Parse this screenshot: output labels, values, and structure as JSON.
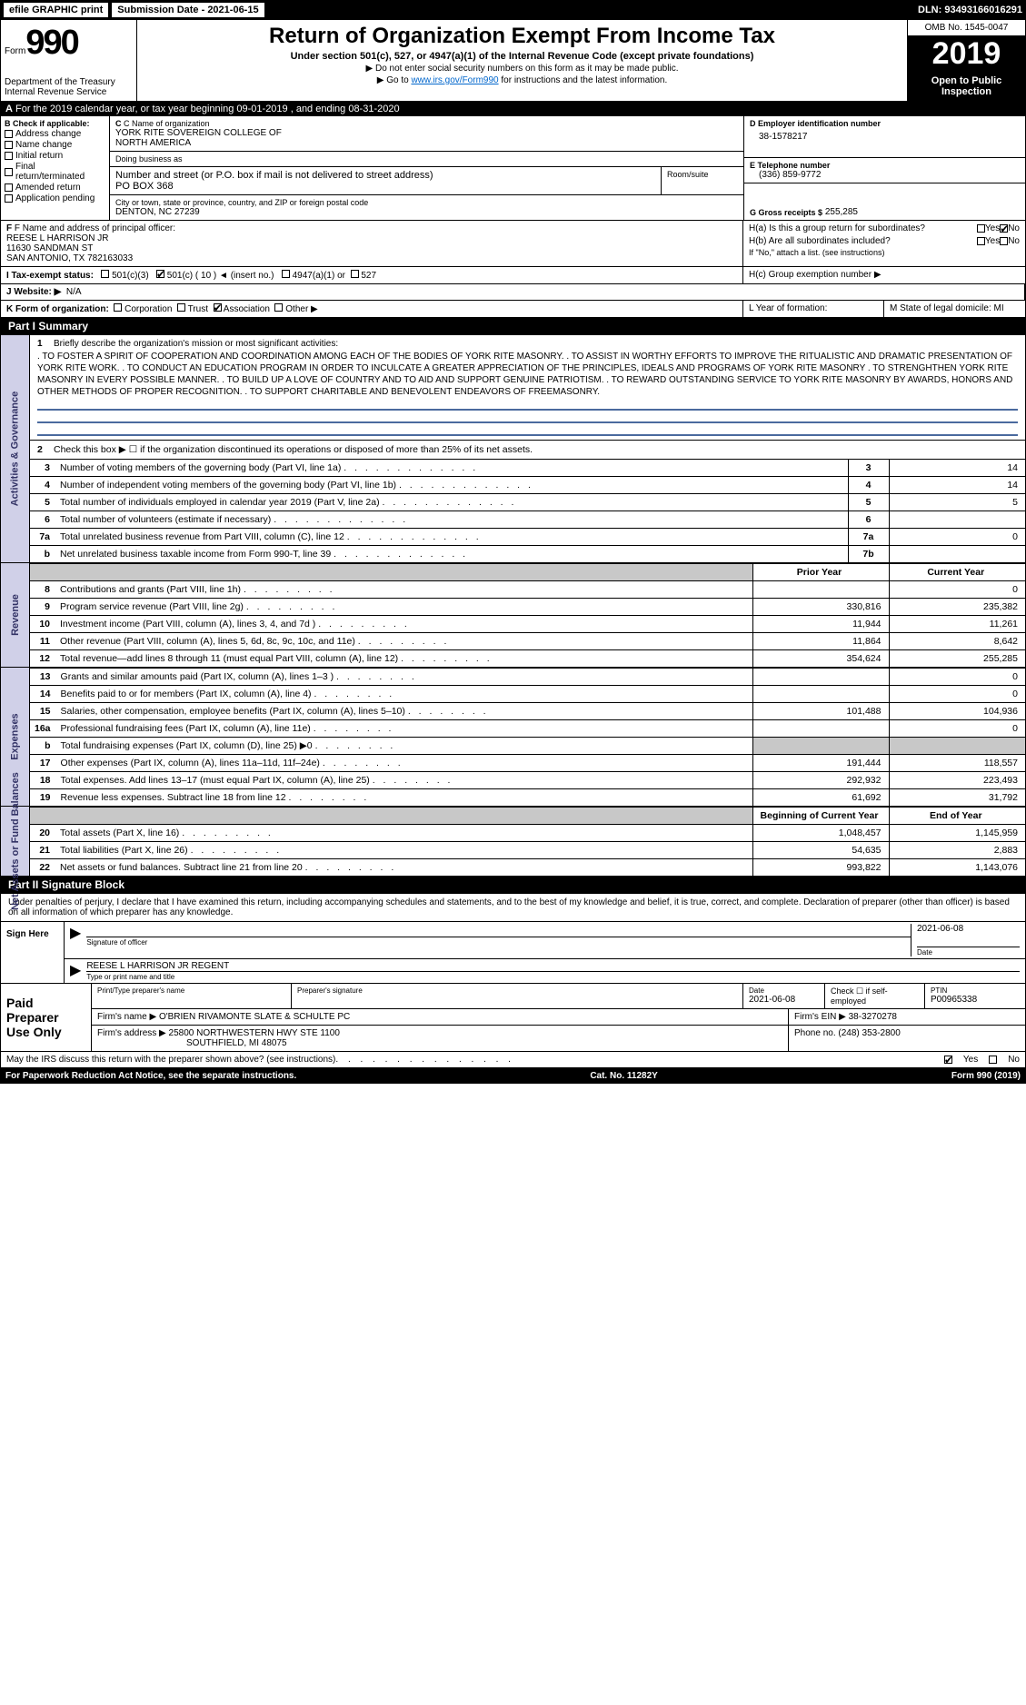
{
  "topbar": {
    "efile": "efile GRAPHIC print",
    "submission": "Submission Date - 2021-06-15",
    "dln": "DLN: 93493166016291"
  },
  "header": {
    "form_label": "Form",
    "form_no": "990",
    "dept": "Department of the Treasury\nInternal Revenue Service",
    "title": "Return of Organization Exempt From Income Tax",
    "subtitle": "Under section 501(c), 527, or 4947(a)(1) of the Internal Revenue Code (except private foundations)",
    "note1": "▶ Do not enter social security numbers on this form as it may be made public.",
    "note2_pre": "▶ Go to ",
    "note2_link": "www.irs.gov/Form990",
    "note2_post": " for instructions and the latest information.",
    "omb": "OMB No. 1545-0047",
    "year": "2019",
    "open": "Open to Public Inspection"
  },
  "band_a": "For the 2019 calendar year, or tax year beginning 09-01-2019   , and ending 08-31-2020",
  "box_b": {
    "header": "B Check if applicable:",
    "items": [
      "Address change",
      "Name change",
      "Initial return",
      "Final return/terminated",
      "Amended return",
      "Application pending"
    ]
  },
  "box_c": {
    "name_lbl": "C Name of organization",
    "name": "YORK RITE SOVEREIGN COLLEGE OF\nNORTH AMERICA",
    "dba_lbl": "Doing business as",
    "dba": "",
    "street_lbl": "Number and street (or P.O. box if mail is not delivered to street address)",
    "street": "PO BOX 368",
    "room_lbl": "Room/suite",
    "city_lbl": "City or town, state or province, country, and ZIP or foreign postal code",
    "city": "DENTON, NC  27239"
  },
  "box_d": {
    "lbl": "D Employer identification number",
    "val": "38-1578217"
  },
  "box_e": {
    "lbl": "E Telephone number",
    "val": "(336) 859-9772"
  },
  "box_g": {
    "lbl": "G Gross receipts $",
    "val": "255,285"
  },
  "box_f": {
    "lbl": "F Name and address of principal officer:",
    "name": "REESE L HARRISON JR",
    "street": "11630 SANDMAN ST",
    "city": "SAN ANTONIO, TX  782163033"
  },
  "box_h": {
    "ha": "H(a)  Is this a group return for subordinates?",
    "hb": "H(b)  Are all subordinates included?",
    "hb_note": "If \"No,\" attach a list. (see instructions)",
    "hc": "H(c)  Group exemption number ▶",
    "yes": "Yes",
    "no": "No"
  },
  "row_i": {
    "lbl": "I  Tax-exempt status:",
    "o1": "501(c)(3)",
    "o2": "501(c) ( 10 ) ◄ (insert no.)",
    "o3": "4947(a)(1) or",
    "o4": "527"
  },
  "row_j": {
    "lbl": "J  Website: ▶",
    "val": "N/A"
  },
  "row_k": {
    "lbl": "K Form of organization:",
    "o1": "Corporation",
    "o2": "Trust",
    "o3": "Association",
    "o4": "Other ▶"
  },
  "row_l": {
    "lbl": "L Year of formation:"
  },
  "row_m": {
    "lbl": "M State of legal domicile: MI"
  },
  "part1": {
    "label": "Part I     Summary",
    "sidelabel_ag": "Activities & Governance",
    "sidelabel_rev": "Revenue",
    "sidelabel_exp": "Expenses",
    "sidelabel_net": "Net Assets or Fund Balances",
    "line1_lbl": "Briefly describe the organization's mission or most significant activities:",
    "mission": ". TO FOSTER A SPIRIT OF COOPERATION AND COORDINATION AMONG EACH OF THE BODIES OF YORK RITE MASONRY. . TO ASSIST IN WORTHY EFFORTS TO IMPROVE THE RITUALISTIC AND DRAMATIC PRESENTATION OF YORK RITE WORK. . TO CONDUCT AN EDUCATION PROGRAM IN ORDER TO INCULCATE A GREATER APPRECIATION OF THE PRINCIPLES, IDEALS AND PROGRAMS OF YORK RITE MASONRY . TO STRENGHTHEN YORK RITE MASONRY IN EVERY POSSIBLE MANNER. . TO BUILD UP A LOVE OF COUNTRY AND TO AID AND SUPPORT GENUINE PATRIOTISM. . TO REWARD OUTSTANDING SERVICE TO YORK RITE MASONRY BY AWARDS, HONORS AND OTHER METHODS OF PROPER RECOGNITION. . TO SUPPORT CHARITABLE AND BENEVOLENT ENDEAVORS OF FREEMASONRY.",
    "line2": "Check this box ▶ ☐  if the organization discontinued its operations or disposed of more than 25% of its net assets.",
    "rows_ag": [
      {
        "n": "3",
        "d": "Number of voting members of the governing body (Part VI, line 1a)",
        "b": "3",
        "v": "14"
      },
      {
        "n": "4",
        "d": "Number of independent voting members of the governing body (Part VI, line 1b)",
        "b": "4",
        "v": "14"
      },
      {
        "n": "5",
        "d": "Total number of individuals employed in calendar year 2019 (Part V, line 2a)",
        "b": "5",
        "v": "5"
      },
      {
        "n": "6",
        "d": "Total number of volunteers (estimate if necessary)",
        "b": "6",
        "v": ""
      },
      {
        "n": "7a",
        "d": "Total unrelated business revenue from Part VIII, column (C), line 12",
        "b": "7a",
        "v": "0"
      },
      {
        "n": "b",
        "d": "Net unrelated business taxable income from Form 990-T, line 39",
        "b": "7b",
        "v": ""
      }
    ],
    "col_prior": "Prior Year",
    "col_current": "Current Year",
    "rows_rev": [
      {
        "n": "8",
        "d": "Contributions and grants (Part VIII, line 1h)",
        "p": "",
        "c": "0"
      },
      {
        "n": "9",
        "d": "Program service revenue (Part VIII, line 2g)",
        "p": "330,816",
        "c": "235,382"
      },
      {
        "n": "10",
        "d": "Investment income (Part VIII, column (A), lines 3, 4, and 7d )",
        "p": "11,944",
        "c": "11,261"
      },
      {
        "n": "11",
        "d": "Other revenue (Part VIII, column (A), lines 5, 6d, 8c, 9c, 10c, and 11e)",
        "p": "11,864",
        "c": "8,642"
      },
      {
        "n": "12",
        "d": "Total revenue—add lines 8 through 11 (must equal Part VIII, column (A), line 12)",
        "p": "354,624",
        "c": "255,285"
      }
    ],
    "rows_exp": [
      {
        "n": "13",
        "d": "Grants and similar amounts paid (Part IX, column (A), lines 1–3 )",
        "p": "",
        "c": "0"
      },
      {
        "n": "14",
        "d": "Benefits paid to or for members (Part IX, column (A), line 4)",
        "p": "",
        "c": "0"
      },
      {
        "n": "15",
        "d": "Salaries, other compensation, employee benefits (Part IX, column (A), lines 5–10)",
        "p": "101,488",
        "c": "104,936"
      },
      {
        "n": "16a",
        "d": "Professional fundraising fees (Part IX, column (A), line 11e)",
        "p": "",
        "c": "0"
      },
      {
        "n": "b",
        "d": "Total fundraising expenses (Part IX, column (D), line 25) ▶0",
        "p": "GREY",
        "c": "GREY"
      },
      {
        "n": "17",
        "d": "Other expenses (Part IX, column (A), lines 11a–11d, 11f–24e)",
        "p": "191,444",
        "c": "118,557"
      },
      {
        "n": "18",
        "d": "Total expenses. Add lines 13–17 (must equal Part IX, column (A), line 25)",
        "p": "292,932",
        "c": "223,493"
      },
      {
        "n": "19",
        "d": "Revenue less expenses. Subtract line 18 from line 12",
        "p": "61,692",
        "c": "31,792"
      }
    ],
    "col_begin": "Beginning of Current Year",
    "col_end": "End of Year",
    "rows_net": [
      {
        "n": "20",
        "d": "Total assets (Part X, line 16)",
        "p": "1,048,457",
        "c": "1,145,959"
      },
      {
        "n": "21",
        "d": "Total liabilities (Part X, line 26)",
        "p": "54,635",
        "c": "2,883"
      },
      {
        "n": "22",
        "d": "Net assets or fund balances. Subtract line 21 from line 20",
        "p": "993,822",
        "c": "1,143,076"
      }
    ]
  },
  "part2": {
    "label": "Part II    Signature Block",
    "statement": "Under penalties of perjury, I declare that I have examined this return, including accompanying schedules and statements, and to the best of my knowledge and belief, it is true, correct, and complete. Declaration of preparer (other than officer) is based on all information of which preparer has any knowledge.",
    "sign_here": "Sign Here",
    "sig_officer_lbl": "Signature of officer",
    "sig_date": "2021-06-08",
    "date_lbl": "Date",
    "name_title": "REESE L HARRISON JR  REGENT",
    "name_title_lbl": "Type or print name and title",
    "paid": "Paid Preparer Use Only",
    "prep_name_lbl": "Print/Type preparer's name",
    "prep_sig_lbl": "Preparer's signature",
    "prep_date_lbl": "Date",
    "prep_date": "2021-06-08",
    "self_emp": "Check ☐ if self-employed",
    "ptin_lbl": "PTIN",
    "ptin": "P00965338",
    "firm_name_lbl": "Firm's name    ▶",
    "firm_name": "O'BRIEN RIVAMONTE SLATE & SCHULTE PC",
    "firm_ein_lbl": "Firm's EIN ▶",
    "firm_ein": "38-3270278",
    "firm_addr_lbl": "Firm's address ▶",
    "firm_addr1": "25800 NORTHWESTERN HWY STE 1100",
    "firm_addr2": "SOUTHFIELD, MI  48075",
    "firm_phone_lbl": "Phone no.",
    "firm_phone": "(248) 353-2800"
  },
  "footer": {
    "discuss": "May the IRS discuss this return with the preparer shown above? (see instructions)",
    "yes": "Yes",
    "no": "No",
    "pra": "For Paperwork Reduction Act Notice, see the separate instructions.",
    "cat": "Cat. No. 11282Y",
    "form": "Form 990 (2019)"
  }
}
